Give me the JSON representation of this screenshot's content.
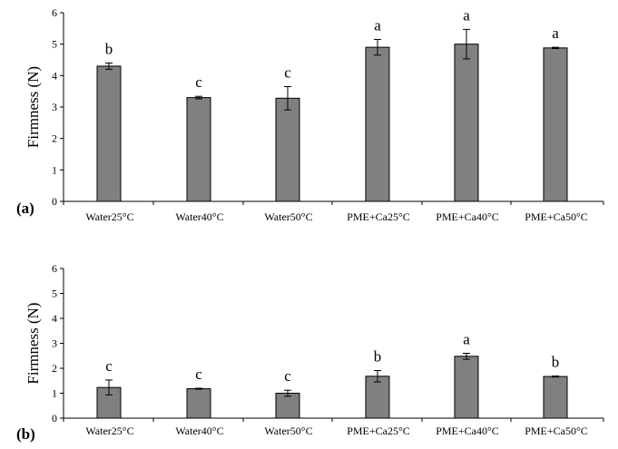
{
  "chart_data": [
    {
      "type": "bar",
      "panel_label": "(a)",
      "ylabel": "Firmness (N)",
      "xlabel": "",
      "ylim": [
        0,
        6
      ],
      "yticks": [
        "0",
        "1",
        "2",
        "3",
        "4",
        "5",
        "6"
      ],
      "categories": [
        "Water25°C",
        "Water40°C",
        "Water50°C",
        "PME+Ca25°C",
        "PME+Ca40°C",
        "PME+Ca50°C"
      ],
      "values": [
        4.3,
        3.3,
        3.28,
        4.9,
        5.0,
        4.88
      ],
      "errors": [
        0.1,
        0.04,
        0.37,
        0.25,
        0.47,
        0.02
      ],
      "significance": [
        "b",
        "c",
        "c",
        "a",
        "a",
        "a"
      ],
      "bar_color": "#808080",
      "grid": false,
      "legend": "none"
    },
    {
      "type": "bar",
      "panel_label": "(b)",
      "ylabel": "Firmness (N)",
      "xlabel": "",
      "ylim": [
        0,
        6
      ],
      "yticks": [
        "0",
        "1",
        "2",
        "3",
        "4",
        "5",
        "6"
      ],
      "categories": [
        "Water25°C",
        "Water40°C",
        "Water50°C",
        "PME+Ca25°C",
        "PME+Ca40°C",
        "PME+Ca50°C"
      ],
      "values": [
        1.23,
        1.18,
        1.0,
        1.68,
        2.48,
        1.67
      ],
      "errors": [
        0.3,
        0.02,
        0.12,
        0.23,
        0.12,
        0.02
      ],
      "significance": [
        "c",
        "c",
        "c",
        "b",
        "a",
        "b"
      ],
      "bar_color": "#808080",
      "grid": false,
      "legend": "none"
    }
  ]
}
